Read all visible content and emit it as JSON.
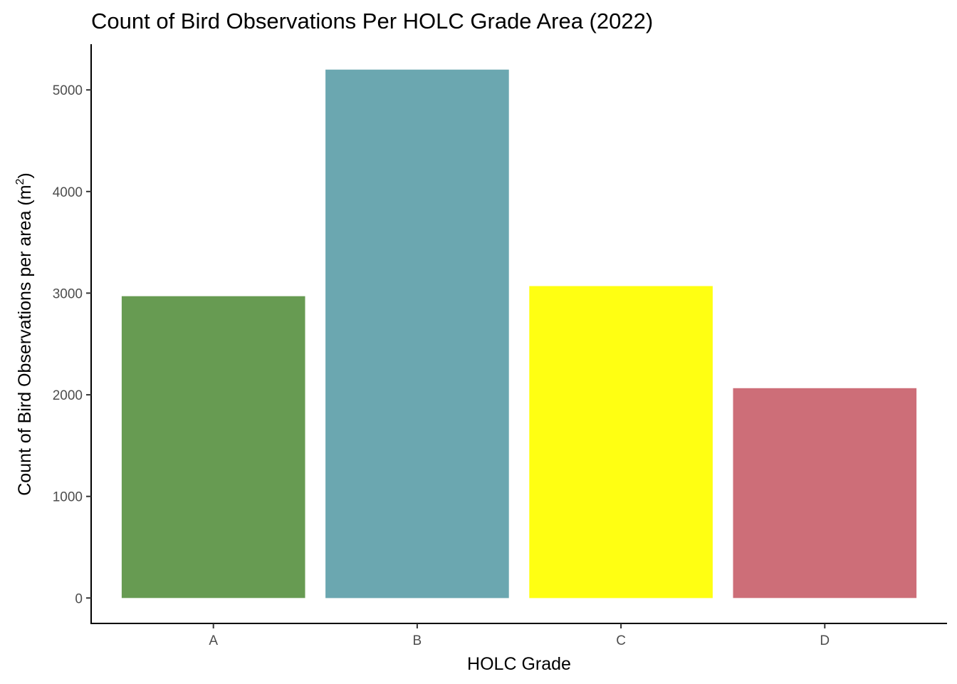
{
  "chart_data": {
    "type": "bar",
    "title": "Count of Bird Observations Per HOLC Grade Area (2022)",
    "xlabel": "HOLC Grade",
    "ylabel": "Count of Bird Observations per area (m",
    "ylabel_superscript": "2",
    "ylabel_suffix": ")",
    "categories": [
      "A",
      "B",
      "C",
      "D"
    ],
    "values": [
      2970,
      5200,
      3070,
      2065
    ],
    "colors": [
      "#679B52",
      "#6BA7B0",
      "#FFFF12",
      "#CD6E78"
    ],
    "ylim": [
      -250,
      5450
    ],
    "yticks": [
      0,
      1000,
      2000,
      3000,
      4000,
      5000
    ],
    "grid": false,
    "legend": "none"
  }
}
